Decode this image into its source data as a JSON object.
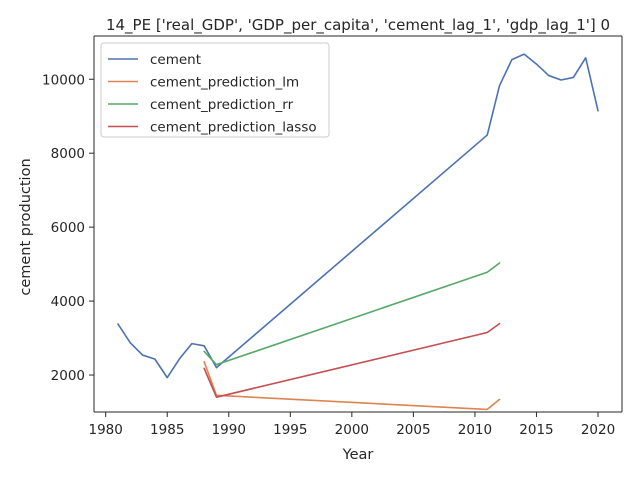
{
  "chart_data": {
    "type": "line",
    "title": "14_PE ['real_GDP', 'GDP_per_capita', 'cement_lag_1', 'gdp_lag_1'] 0",
    "xlabel": "Year",
    "ylabel": "cement production",
    "xlim": [
      1979.05,
      2021.95
    ],
    "ylim": [
      1000,
      11170
    ],
    "xticks": [
      1980,
      1985,
      1990,
      1995,
      2000,
      2005,
      2010,
      2015,
      2020
    ],
    "yticks": [
      2000,
      4000,
      6000,
      8000,
      10000
    ],
    "grid": false,
    "legend_position": "top-left",
    "series": [
      {
        "name": "cement",
        "color": "#4c72b0",
        "x": [
          1981,
          1982,
          1983,
          1984,
          1985,
          1986,
          1987,
          1988,
          1989,
          2011,
          2012,
          2013,
          2014,
          2015,
          2016,
          2017,
          2018,
          2019,
          2020
        ],
        "y": [
          3380,
          2870,
          2540,
          2430,
          1930,
          2440,
          2850,
          2790,
          2200,
          8490,
          9830,
          10530,
          10680,
          10410,
          10100,
          9980,
          10050,
          10580,
          9150
        ]
      },
      {
        "name": "cement_prediction_lm",
        "color": "#dd8452",
        "x": [
          1988,
          1989,
          2011,
          2012
        ],
        "y": [
          2360,
          1450,
          1070,
          1340
        ]
      },
      {
        "name": "cement_prediction_rr",
        "color": "#55a868",
        "x": [
          1988,
          1989,
          2011,
          2012
        ],
        "y": [
          2640,
          2280,
          4780,
          5030
        ]
      },
      {
        "name": "cement_prediction_lasso",
        "color": "#c44e52",
        "x": [
          1988,
          1989,
          2011,
          2012
        ],
        "y": [
          2180,
          1400,
          3150,
          3390
        ]
      }
    ]
  }
}
